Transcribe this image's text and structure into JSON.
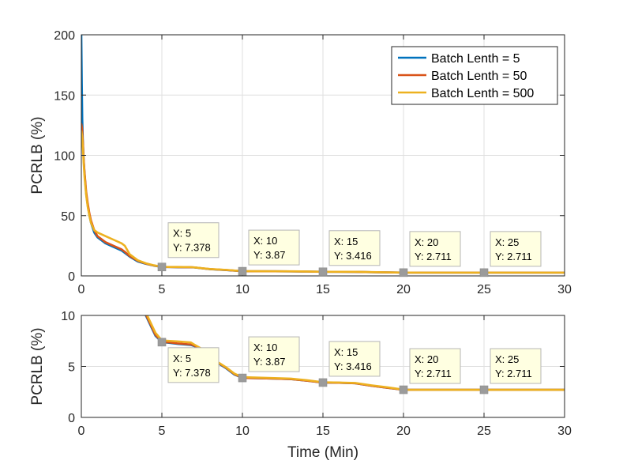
{
  "chart_data": [
    {
      "type": "line",
      "id": "top",
      "title": "",
      "xlabel": "",
      "ylabel": "PCRLB (%)",
      "xlim": [
        0,
        30
      ],
      "ylim": [
        0,
        200
      ],
      "xticks": [
        0,
        5,
        10,
        15,
        20,
        25,
        30
      ],
      "yticks": [
        0,
        50,
        100,
        150,
        200
      ],
      "grid": true,
      "legend_position": "top-right",
      "series": [
        {
          "name": "Batch Lenth = 5",
          "color": "#0072BD",
          "x": [
            0,
            0.03,
            0.06,
            0.1,
            0.15,
            0.2,
            0.3,
            0.4,
            0.5,
            0.6,
            0.8,
            1.0,
            1.5,
            2.0,
            2.5,
            2.7,
            3.0,
            3.5,
            4.0,
            4.5,
            5.0,
            5.5,
            6.0,
            6.8,
            7.0,
            8.0,
            9.0,
            10.0,
            11.0,
            12.0,
            13.0,
            14.0,
            15.0,
            16.0,
            17.0,
            18.0,
            19.0,
            20.0,
            21.0,
            22.0,
            23.0,
            24.0,
            25.0,
            26.0,
            27.0,
            28.0,
            29.0,
            30.0
          ],
          "y": [
            200,
            160,
            130,
            110,
            95,
            85,
            68,
            58,
            50,
            44,
            36,
            32,
            27,
            24,
            21,
            19,
            16,
            12,
            10,
            8.5,
            7.378,
            7.3,
            7.2,
            7.1,
            7.0,
            5.5,
            4.8,
            3.87,
            3.84,
            3.8,
            3.75,
            3.6,
            3.416,
            3.4,
            3.35,
            3.1,
            2.9,
            2.711,
            2.711,
            2.711,
            2.711,
            2.711,
            2.711,
            2.711,
            2.711,
            2.711,
            2.711,
            2.711
          ]
        },
        {
          "name": "Batch Lenth = 50",
          "color": "#D95319",
          "x": [
            0,
            0.05,
            0.1,
            0.15,
            0.2,
            0.3,
            0.4,
            0.5,
            0.6,
            0.8,
            1.0,
            1.5,
            2.0,
            2.5,
            2.7,
            3.0,
            3.5,
            4.0,
            4.5,
            5.0,
            5.5,
            6.0,
            6.8,
            7.0,
            8.0,
            9.0,
            10.0,
            11.0,
            12.0,
            13.0,
            14.0,
            15.0,
            16.0,
            17.0,
            18.0,
            19.0,
            20.0,
            21.0,
            22.0,
            23.0,
            24.0,
            25.0,
            26.0,
            27.0,
            28.0,
            29.0,
            30.0
          ],
          "y": [
            126,
            122,
            110,
            96,
            86,
            70,
            60,
            52,
            46,
            38,
            33,
            28,
            25,
            22,
            20,
            16.5,
            12.5,
            10.2,
            8.6,
            7.378,
            7.35,
            7.25,
            7.15,
            7.05,
            5.6,
            4.9,
            3.87,
            3.84,
            3.8,
            3.75,
            3.6,
            3.416,
            3.4,
            3.35,
            3.1,
            2.9,
            2.711,
            2.711,
            2.711,
            2.711,
            2.711,
            2.711,
            2.711,
            2.711,
            2.711,
            2.711,
            2.711
          ]
        },
        {
          "name": "Batch Lenth = 500",
          "color": "#EDB120",
          "x": [
            0,
            0.05,
            0.1,
            0.15,
            0.2,
            0.3,
            0.4,
            0.5,
            0.6,
            0.8,
            1.0,
            1.5,
            2.0,
            2.5,
            2.7,
            3.0,
            3.5,
            4.0,
            4.5,
            5.0,
            5.5,
            6.0,
            6.8,
            7.0,
            8.0,
            9.0,
            10.0,
            11.0,
            12.0,
            13.0,
            14.0,
            15.0,
            16.0,
            17.0,
            18.0,
            19.0,
            20.0,
            21.0,
            22.0,
            23.0,
            24.0,
            25.0,
            26.0,
            27.0,
            28.0,
            29.0,
            30.0
          ],
          "y": [
            120,
            116,
            105,
            92,
            82,
            67,
            57,
            50,
            44,
            38,
            36,
            33,
            30,
            27,
            25,
            18,
            13,
            10.5,
            8.8,
            7.5,
            7.45,
            7.4,
            7.3,
            7.1,
            5.7,
            5.0,
            3.95,
            3.9,
            3.85,
            3.8,
            3.65,
            3.45,
            3.42,
            3.38,
            3.15,
            2.95,
            2.72,
            2.711,
            2.711,
            2.711,
            2.711,
            2.711,
            2.711,
            2.711,
            2.711,
            2.711,
            2.711
          ]
        }
      ],
      "annotations": [
        {
          "x": 5,
          "y": 7.378,
          "line1": "X: 5",
          "line2": "Y: 7.378"
        },
        {
          "x": 10,
          "y": 3.87,
          "line1": "X: 10",
          "line2": "Y: 3.87"
        },
        {
          "x": 15,
          "y": 3.416,
          "line1": "X: 15",
          "line2": "Y: 3.416"
        },
        {
          "x": 20,
          "y": 2.711,
          "line1": "X: 20",
          "line2": "Y: 2.711"
        },
        {
          "x": 25,
          "y": 2.711,
          "line1": "X: 25",
          "line2": "Y: 2.711"
        }
      ]
    },
    {
      "type": "line",
      "id": "bottom",
      "title": "",
      "xlabel": "Time (Min)",
      "ylabel": "PCRLB (%)",
      "xlim": [
        0,
        30
      ],
      "ylim": [
        0,
        10
      ],
      "xticks": [
        0,
        5,
        10,
        15,
        20,
        25,
        30
      ],
      "yticks": [
        0,
        5,
        10
      ],
      "grid": true,
      "series": [
        {
          "name": "Batch Lenth = 5",
          "color": "#0072BD",
          "x": [
            3.5,
            3.8,
            4.0,
            4.3,
            4.6,
            5.0,
            5.5,
            6.0,
            6.8,
            7.0,
            7.5,
            8.0,
            8.5,
            9.0,
            9.5,
            10.0,
            11.0,
            12.0,
            13.0,
            14.0,
            15.0,
            16.0,
            17.0,
            18.0,
            19.0,
            20.0,
            21.0,
            22.0,
            23.0,
            24.0,
            25.0,
            26.0,
            27.0,
            28.0,
            29.0,
            30.0
          ],
          "y": [
            12,
            11,
            10,
            9.0,
            8.0,
            7.378,
            7.3,
            7.2,
            7.1,
            7.0,
            6.5,
            5.8,
            5.3,
            4.8,
            4.2,
            3.87,
            3.84,
            3.8,
            3.75,
            3.6,
            3.416,
            3.4,
            3.35,
            3.1,
            2.9,
            2.711,
            2.711,
            2.711,
            2.711,
            2.711,
            2.711,
            2.711,
            2.711,
            2.711,
            2.711,
            2.711
          ]
        },
        {
          "name": "Batch Lenth = 50",
          "color": "#D95319",
          "x": [
            3.5,
            3.8,
            4.0,
            4.3,
            4.6,
            5.0,
            5.5,
            6.0,
            6.8,
            7.0,
            7.5,
            8.0,
            8.5,
            9.0,
            9.5,
            10.0,
            11.0,
            12.0,
            13.0,
            14.0,
            15.0,
            16.0,
            17.0,
            18.0,
            19.0,
            20.0,
            21.0,
            22.0,
            23.0,
            24.0,
            25.0,
            26.0,
            27.0,
            28.0,
            29.0,
            30.0
          ],
          "y": [
            12,
            11,
            10.1,
            9.1,
            8.1,
            7.378,
            7.35,
            7.25,
            7.15,
            7.05,
            6.6,
            5.9,
            5.35,
            4.85,
            4.25,
            3.87,
            3.84,
            3.8,
            3.75,
            3.6,
            3.416,
            3.4,
            3.35,
            3.1,
            2.9,
            2.711,
            2.711,
            2.711,
            2.711,
            2.711,
            2.711,
            2.711,
            2.711,
            2.711,
            2.711,
            2.711
          ]
        },
        {
          "name": "Batch Lenth = 500",
          "color": "#EDB120",
          "x": [
            3.5,
            3.8,
            4.0,
            4.3,
            4.6,
            5.0,
            5.5,
            6.0,
            6.8,
            7.0,
            7.5,
            8.0,
            8.5,
            9.0,
            9.5,
            10.0,
            11.0,
            12.0,
            13.0,
            14.0,
            15.0,
            16.0,
            17.0,
            18.0,
            19.0,
            20.0,
            21.0,
            22.0,
            23.0,
            24.0,
            25.0,
            26.0,
            27.0,
            28.0,
            29.0,
            30.0
          ],
          "y": [
            12,
            11.2,
            10.3,
            9.3,
            8.3,
            7.55,
            7.5,
            7.45,
            7.35,
            7.15,
            6.7,
            6.0,
            5.4,
            4.9,
            4.3,
            3.95,
            3.9,
            3.85,
            3.8,
            3.65,
            3.45,
            3.42,
            3.38,
            3.15,
            2.95,
            2.72,
            2.711,
            2.711,
            2.711,
            2.711,
            2.711,
            2.711,
            2.711,
            2.711,
            2.711,
            2.711
          ]
        }
      ],
      "annotations": [
        {
          "x": 5,
          "y": 7.378,
          "line1": "X: 5",
          "line2": "Y: 7.378"
        },
        {
          "x": 10,
          "y": 3.87,
          "line1": "X: 10",
          "line2": "Y: 3.87"
        },
        {
          "x": 15,
          "y": 3.416,
          "line1": "X: 15",
          "line2": "Y: 3.416"
        },
        {
          "x": 20,
          "y": 2.711,
          "line1": "X: 20",
          "line2": "Y: 2.711"
        },
        {
          "x": 25,
          "y": 2.711,
          "line1": "X: 25",
          "line2": "Y: 2.711"
        }
      ]
    }
  ],
  "colors": {
    "background": "#ffffff",
    "axis": "#262626",
    "grid": "#dfdfdf",
    "datatip_fill": "#ffffe1",
    "datatip_border": "#b5b5b5",
    "marker": "#9b9b9b"
  }
}
